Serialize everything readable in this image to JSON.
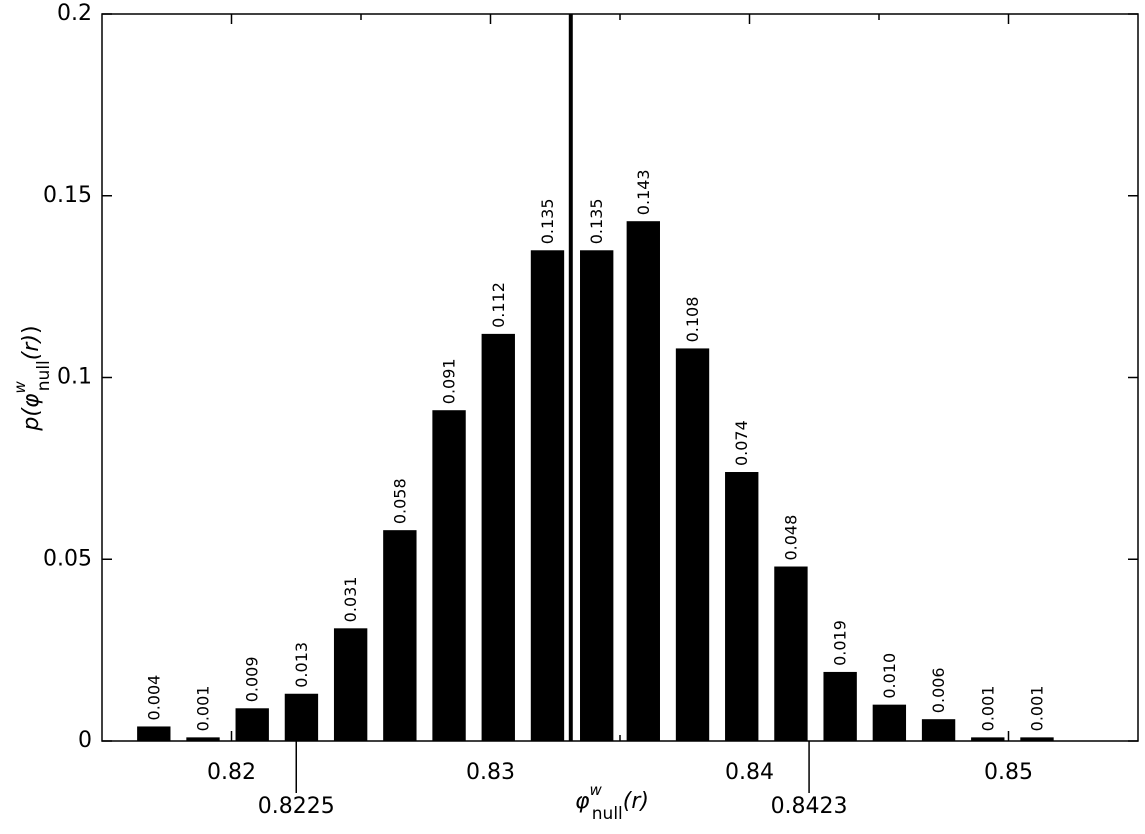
{
  "chart_data": {
    "type": "bar",
    "ylabel": {
      "prefix": "p(",
      "symbol": "φ",
      "sup": "w",
      "sub": "null",
      "arg": "(r)",
      "suffix": ")"
    },
    "xlabel": {
      "symbol": "φ",
      "sup": "w",
      "sub": "null",
      "arg": "(r)"
    },
    "x": [
      0.817,
      0.8189,
      0.8208,
      0.8227,
      0.8246,
      0.8265,
      0.8284,
      0.8303,
      0.8322,
      0.8341,
      0.8359,
      0.8378,
      0.8397,
      0.8416,
      0.8435,
      0.8454,
      0.8473,
      0.8492,
      0.8511
    ],
    "values": [
      0.004,
      0.001,
      0.009,
      0.013,
      0.031,
      0.058,
      0.091,
      0.112,
      0.135,
      0.135,
      0.143,
      0.108,
      0.074,
      0.048,
      0.019,
      0.01,
      0.006,
      0.001,
      0.001
    ],
    "value_labels": [
      "0.004",
      "0.001",
      "0.009",
      "0.013",
      "0.031",
      "0.058",
      "0.091",
      "0.112",
      "0.135",
      "0.135",
      "0.143",
      "0.108",
      "0.074",
      "0.048",
      "0.019",
      "0.010",
      "0.006",
      "0.001",
      "0.001"
    ],
    "color": "#000000",
    "vline": 0.8331,
    "xmarkers": [
      0.8225,
      0.8423
    ],
    "xlim": [
      0.815,
      0.855
    ],
    "xticks": [
      0.82,
      0.83,
      0.84,
      0.85
    ],
    "xminorticks": [
      0.825,
      0.835,
      0.845
    ],
    "ylim": [
      0,
      0.2
    ],
    "yticks": [
      0,
      0.05,
      0.1,
      0.15,
      0.2
    ],
    "grid": false
  }
}
